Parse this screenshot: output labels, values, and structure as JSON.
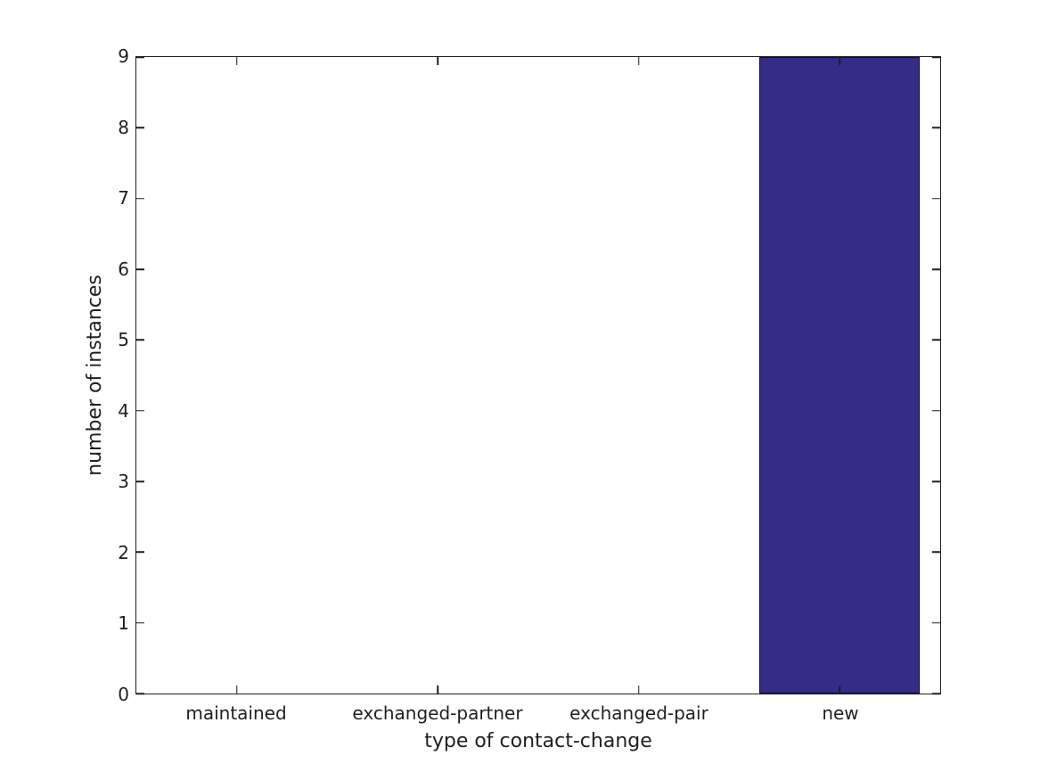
{
  "chart_data": {
    "type": "bar",
    "title": "",
    "xlabel": "type of contact-change",
    "ylabel": "number of instances",
    "categories": [
      "maintained",
      "exchanged-partner",
      "exchanged-pair",
      "new"
    ],
    "values": [
      0,
      0,
      0,
      9
    ],
    "ylim": [
      0,
      9
    ],
    "yticks": [
      0,
      1,
      2,
      3,
      4,
      5,
      6,
      7,
      8,
      9
    ],
    "bar_width_fraction": 0.8,
    "bar_color": "#342d87",
    "bar_edge_color": "#111111",
    "axis_color": "#1f1f1f",
    "text_color": "#1f1f1f",
    "grid": false,
    "legend": "none",
    "tick_direction": "in",
    "ticks_all_sides": true
  }
}
